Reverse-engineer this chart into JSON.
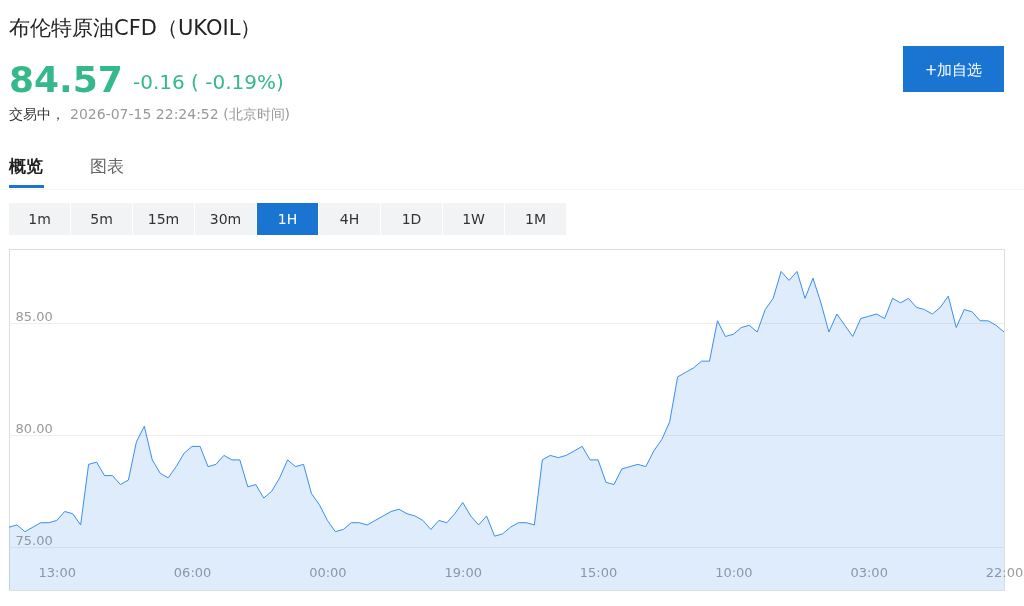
{
  "chart_data": {
    "type": "area",
    "title": "布伦特原油CFD（UKOIL）",
    "annotations": [
      "84.57",
      "-0.16 ( -0.19%)",
      "交易中，",
      "2026-07-15 22:24:52 (北京时间)",
      "概览",
      "图表",
      "1m",
      "5m",
      "15m",
      "30m",
      "1H",
      "4H",
      "1D",
      "1W",
      "1M",
      "+加自选"
    ],
    "categories": [
      null,
      null,
      null,
      null,
      null,
      null,
      "13:00",
      null,
      null,
      null,
      null,
      null,
      null,
      null,
      null,
      null,
      null,
      null,
      null,
      null,
      null,
      null,
      null,
      "06:00",
      null,
      null,
      null,
      null,
      null,
      null,
      null,
      null,
      null,
      null,
      null,
      null,
      null,
      null,
      null,
      null,
      "00:00",
      null,
      null,
      null,
      null,
      null,
      null,
      null,
      null,
      null,
      null,
      null,
      null,
      null,
      null,
      null,
      null,
      "19:00",
      null,
      null,
      null,
      null,
      null,
      null,
      null,
      null,
      null,
      null,
      null,
      null,
      null,
      null,
      null,
      null,
      "15:00",
      null,
      null,
      null,
      null,
      null,
      null,
      null,
      null,
      null,
      null,
      null,
      null,
      null,
      null,
      null,
      null,
      "10:00",
      null,
      null,
      null,
      null,
      null,
      null,
      null,
      null,
      null,
      null,
      null,
      null,
      null,
      null,
      null,
      null,
      "03:00",
      null,
      null,
      null,
      null,
      null,
      null,
      null,
      null,
      null,
      null,
      null,
      null,
      null,
      null,
      null,
      null,
      "22:00"
    ],
    "series": [
      {
        "color": "#3a8ef0",
        "values": [
          75.9,
          76.0,
          75.7,
          75.9,
          76.1,
          76.1,
          76.2,
          76.6,
          76.5,
          76.0,
          78.7,
          78.8,
          78.2,
          78.2,
          77.8,
          78.0,
          79.7,
          80.4,
          78.9,
          78.3,
          78.1,
          78.6,
          79.2,
          79.5,
          79.5,
          78.6,
          78.7,
          79.1,
          78.9,
          78.9,
          77.7,
          77.8,
          77.2,
          77.5,
          78.1,
          78.9,
          78.6,
          78.7,
          77.4,
          76.9,
          76.2,
          75.7,
          75.8,
          76.1,
          76.1,
          76.0,
          76.2,
          76.4,
          76.6,
          76.7,
          76.5,
          76.4,
          76.2,
          75.8,
          76.2,
          76.1,
          76.5,
          77.0,
          76.4,
          76.0,
          76.4,
          75.5,
          75.6,
          75.9,
          76.1,
          76.1,
          76.0,
          78.9,
          79.1,
          79.0,
          79.1,
          79.3,
          79.5,
          78.9,
          78.9,
          77.9,
          77.8,
          78.5,
          78.6,
          78.7,
          78.6,
          79.3,
          79.8,
          80.6,
          82.6,
          82.8,
          83.0,
          83.3,
          83.3,
          85.1,
          84.4,
          84.5,
          84.8,
          84.9,
          84.6,
          85.6,
          86.1,
          87.3,
          86.9,
          87.3,
          86.1,
          87.0,
          85.9,
          84.6,
          85.4,
          84.9,
          84.4,
          85.2,
          85.3,
          85.4,
          85.2,
          86.1,
          85.9,
          86.1,
          85.7,
          85.6,
          85.4,
          85.7,
          86.2,
          84.8,
          85.6,
          85.5,
          85.1,
          85.1,
          84.9,
          84.6
        ]
      }
    ],
    "ylim": [
      73.1,
      88.3
    ],
    "yticks": [
      {
        "value": 75,
        "label": "75.00"
      },
      {
        "value": 80,
        "label": "80.00"
      },
      {
        "value": 85,
        "label": "85.00"
      }
    ],
    "grid": "y"
  }
}
